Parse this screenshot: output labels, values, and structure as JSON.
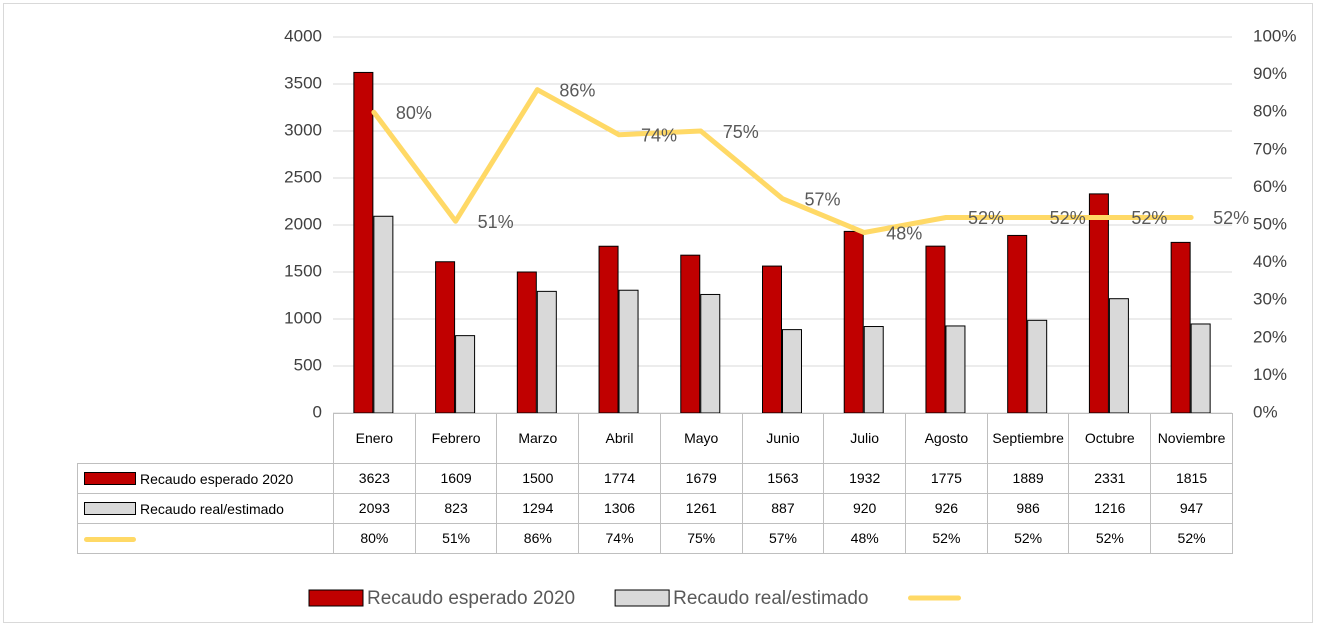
{
  "chart_data": {
    "type": "bar",
    "categories": [
      "Enero",
      "Febrero",
      "Marzo",
      "Abril",
      "Mayo",
      "Junio",
      "Julio",
      "Agosto",
      "Septiembre",
      "Octubre",
      "Noviembre"
    ],
    "series": [
      {
        "name": "Recaudo esperado 2020",
        "type": "bar",
        "color": "#c00000",
        "values": [
          3623,
          1609,
          1500,
          1774,
          1679,
          1563,
          1932,
          1775,
          1889,
          2331,
          1815
        ]
      },
      {
        "name": "Recaudo real/estimado",
        "type": "bar",
        "color": "#d9d9d9",
        "values": [
          2093,
          823,
          1294,
          1306,
          1261,
          887,
          920,
          926,
          986,
          1216,
          947
        ]
      },
      {
        "type": "line",
        "axis": "y2",
        "color": "#ffd966",
        "values": [
          80,
          51,
          86,
          74,
          75,
          57,
          48,
          52,
          52,
          52,
          52
        ],
        "value_labels": [
          "80%",
          "51%",
          "86%",
          "74%",
          "75%",
          "57%",
          "48%",
          "52%",
          "52%",
          "52%",
          "52%"
        ]
      }
    ],
    "ylim": [
      0,
      4000
    ],
    "yticks": [
      0,
      500,
      1000,
      1500,
      2000,
      2500,
      3000,
      3500,
      4000
    ],
    "y2lim": [
      0,
      100
    ],
    "y2ticks": [
      {
        "value": 0,
        "label": "0%"
      },
      {
        "value": 10,
        "label": "10%"
      },
      {
        "value": 20,
        "label": "20%"
      },
      {
        "value": 30,
        "label": "30%"
      },
      {
        "value": 40,
        "label": "40%"
      },
      {
        "value": 50,
        "label": "50%"
      },
      {
        "value": 60,
        "label": "60%"
      },
      {
        "value": 70,
        "label": "70%"
      },
      {
        "value": 80,
        "label": "80%"
      },
      {
        "value": 90,
        "label": "90%"
      },
      {
        "value": 100,
        "label": "100%"
      }
    ],
    "grid": true,
    "legend": "bottom",
    "data_table": true
  }
}
